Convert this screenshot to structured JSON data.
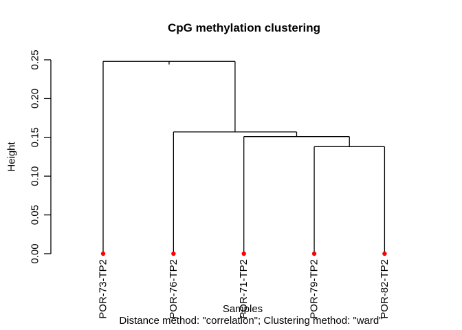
{
  "chart_data": {
    "type": "dendrogram",
    "title": "CpG methylation clustering",
    "xlabel": "Samples",
    "ylabel": "Height",
    "sub_caption": "Distance method: \"correlation\"; Clustering method: \"ward\"",
    "leaves": [
      "POR-73-TP2",
      "POR-76-TP2",
      "POR-71-TP2",
      "POR-79-TP2",
      "POR-82-TP2"
    ],
    "merges": [
      {
        "a": 4,
        "b": 5,
        "height": 0.138
      },
      {
        "a": 3,
        "b": -1,
        "height": 0.151
      },
      {
        "a": 2,
        "b": -2,
        "height": 0.157
      },
      {
        "a": 1,
        "b": -3,
        "height": 0.248
      }
    ],
    "merge_note": "a/b: positive = leaf index (1-based), negative = earlier merge row (1-based)",
    "y_ticks": [
      0.0,
      0.05,
      0.1,
      0.15,
      0.2,
      0.25
    ],
    "y_tick_labels": [
      "0.00",
      "0.05",
      "0.10",
      "0.15",
      "0.20",
      "0.25"
    ],
    "ylim": [
      0,
      0.25
    ],
    "grid": "off",
    "legend": "none",
    "leaf_point_shape": "filled-circle",
    "leaf_color": "#ff0000",
    "line_color": "#000000",
    "background_color": "#ffffff"
  }
}
